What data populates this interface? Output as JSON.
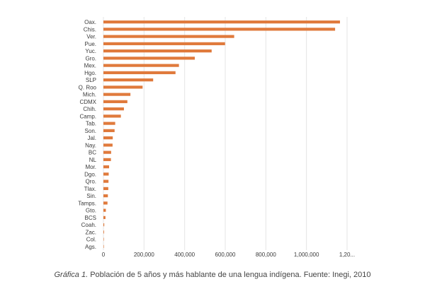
{
  "chart_data": {
    "type": "bar",
    "orientation": "horizontal",
    "categories": [
      "Oax.",
      "Chis.",
      "Ver.",
      "Pue.",
      "Yuc.",
      "Gro.",
      "Mex.",
      "Hgo.",
      "SLP",
      "Q. Roo",
      "Mich.",
      "CDMX",
      "Chih.",
      "Camp.",
      "Tab.",
      "Son.",
      "Jal.",
      "Nay.",
      "BC",
      "NL",
      "Mor.",
      "Dgo.",
      "Qro.",
      "Tlax.",
      "Sin.",
      "Tamps.",
      "Gto.",
      "BCS",
      "Coah.",
      "Zac.",
      "Col.",
      "Ags."
    ],
    "values": [
      1165000,
      1141000,
      644000,
      599000,
      533000,
      450000,
      372000,
      355000,
      245000,
      193000,
      133000,
      118000,
      101000,
      86000,
      58000,
      55000,
      46000,
      45000,
      38000,
      37000,
      28000,
      26000,
      25000,
      24000,
      22000,
      20000,
      12000,
      10000,
      4000,
      3000,
      2000,
      1000
    ],
    "xlim": [
      0,
      1200000
    ],
    "xticks": [
      "0",
      "200,000",
      "400,000",
      "600,000",
      "800,000",
      "1,000,000",
      "1,20..."
    ],
    "xtick_values": [
      0,
      200000,
      400000,
      600000,
      800000,
      1000000,
      1200000
    ],
    "grid": true,
    "bar_color": "#e07a3c",
    "grid_color": "#e5e5e5"
  },
  "caption": {
    "figure_label": "Gráfica 1.",
    "text": " Población de 5 años y más hablante de una lengua indígena. Fuente: Inegi, 2010"
  }
}
